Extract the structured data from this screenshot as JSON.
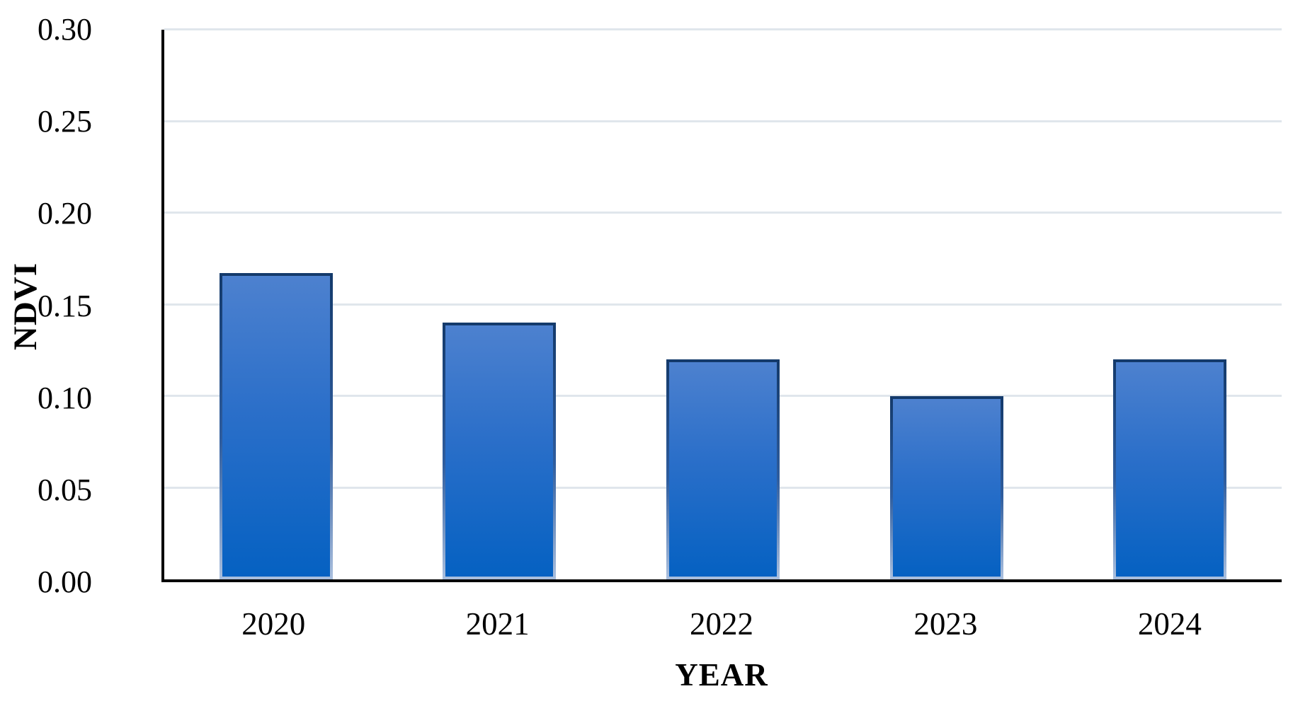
{
  "chart_data": {
    "type": "bar",
    "title": "",
    "categories": [
      "2020",
      "2021",
      "2022",
      "2023",
      "2024"
    ],
    "values": [
      0.167,
      0.14,
      0.12,
      0.1,
      0.12
    ],
    "series": [
      {
        "name": "NDVI",
        "values": [
          0.167,
          0.14,
          0.12,
          0.1,
          0.12
        ]
      }
    ],
    "xlabel": "YEAR",
    "ylabel": "NDVI",
    "ylim": [
      0.0,
      0.3
    ],
    "ytick_step": 0.05,
    "ytick_labels": [
      "0.00",
      "0.05",
      "0.10",
      "0.15",
      "0.20",
      "0.25",
      "0.30"
    ],
    "grid": "horizontal gridlines on, vertical off",
    "legend_position": "none"
  },
  "colors": {
    "background": "#ffffff",
    "bar_fill_top": "#4d81cf",
    "bar_fill_mid": "#2b6fc9",
    "bar_fill_bottom": "#0561c2",
    "bar_border_top": "#143a6b",
    "bar_border_bottom": "#a9bedd",
    "gridline": "#e0e6ec",
    "axis_line": "#000000",
    "text": "#000000"
  }
}
